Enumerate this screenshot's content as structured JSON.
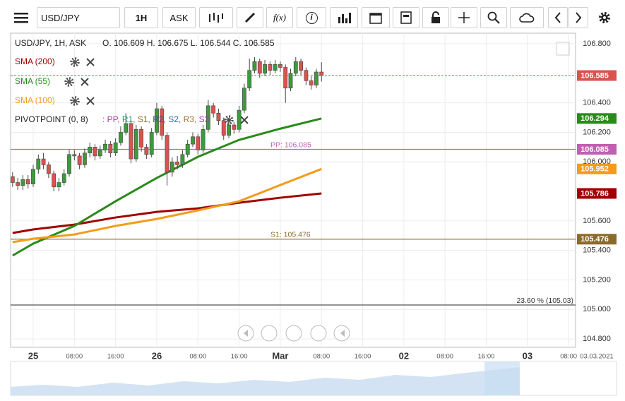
{
  "toolbar": {
    "symbol": "USD/JPY",
    "interval": "1H",
    "price_type": "ASK",
    "function_label": "f(x)",
    "info_label": "i"
  },
  "chart_data": {
    "type": "candlestick",
    "header": "USD/JPY, 1H, ASK",
    "ohlc_text": "O. 106.609 H. 106.675 L. 106.544 C. 106.585",
    "up_color": "#3c9a3c",
    "down_color": "#d9534f",
    "x": [
      -4,
      -3,
      -2,
      -1,
      0,
      1,
      2,
      3,
      4,
      5,
      6,
      7,
      8,
      9,
      10,
      11,
      12,
      13,
      14,
      15,
      16,
      17,
      18,
      19,
      20,
      21,
      22,
      23,
      24,
      25,
      26,
      27,
      28,
      29,
      30,
      31,
      32,
      33,
      34,
      35,
      36,
      37,
      38,
      39,
      40,
      41,
      42,
      43,
      44,
      45,
      46,
      47,
      48,
      49,
      50,
      51,
      52,
      53,
      54,
      55,
      56
    ],
    "open": [
      105.9,
      105.86,
      105.84,
      105.88,
      105.85,
      105.95,
      106.02,
      105.98,
      105.92,
      105.83,
      105.86,
      105.92,
      106.05,
      106.04,
      105.98,
      106.06,
      106.1,
      106.04,
      106.08,
      106.12,
      106.06,
      106.13,
      106.2,
      106.26,
      106.02,
      106.22,
      106.1,
      106.05,
      106.2,
      106.36,
      106.18,
      105.93,
      106.0,
      105.98,
      106.05,
      106.12,
      106.17,
      106.08,
      106.22,
      106.38,
      106.33,
      106.28,
      106.18,
      106.25,
      106.22,
      106.35,
      106.5,
      106.62,
      106.68,
      106.6,
      106.66,
      106.62,
      106.66,
      106.64,
      106.5,
      106.6,
      106.68,
      106.62,
      106.55,
      106.52,
      106.609
    ],
    "high": [
      105.93,
      105.89,
      105.91,
      105.91,
      105.98,
      106.05,
      106.06,
      106.0,
      105.94,
      105.89,
      105.95,
      106.08,
      106.08,
      106.06,
      106.09,
      106.13,
      106.12,
      106.11,
      106.15,
      106.14,
      106.16,
      106.24,
      106.33,
      106.28,
      106.25,
      106.24,
      106.12,
      106.23,
      106.4,
      106.38,
      106.2,
      106.03,
      106.04,
      106.08,
      106.15,
      106.2,
      106.19,
      106.25,
      106.42,
      106.4,
      106.36,
      106.3,
      106.28,
      106.27,
      106.38,
      106.53,
      106.7,
      106.71,
      106.7,
      106.69,
      106.68,
      106.69,
      106.68,
      106.66,
      106.63,
      106.71,
      106.7,
      106.64,
      106.58,
      106.63,
      106.675
    ],
    "low": [
      105.83,
      105.81,
      105.81,
      105.82,
      105.83,
      105.92,
      105.95,
      105.89,
      105.8,
      105.8,
      105.84,
      105.9,
      106.01,
      105.95,
      105.96,
      106.03,
      106.01,
      106.02,
      106.06,
      106.03,
      106.04,
      106.11,
      106.18,
      105.99,
      106.0,
      106.07,
      106.02,
      106.03,
      106.18,
      106.15,
      105.84,
      105.9,
      105.95,
      105.96,
      106.03,
      106.1,
      106.05,
      106.06,
      106.2,
      106.3,
      106.25,
      106.15,
      106.16,
      106.19,
      106.2,
      106.33,
      106.48,
      106.6,
      106.57,
      106.58,
      106.59,
      106.6,
      106.61,
      106.4,
      106.48,
      106.58,
      106.59,
      106.52,
      106.49,
      106.5,
      106.544
    ],
    "close": [
      105.86,
      105.84,
      105.88,
      105.85,
      105.95,
      106.02,
      105.98,
      105.92,
      105.83,
      105.86,
      105.92,
      106.05,
      106.04,
      105.98,
      106.06,
      106.1,
      106.04,
      106.08,
      106.12,
      106.06,
      106.13,
      106.2,
      106.26,
      106.02,
      106.22,
      106.1,
      106.05,
      106.2,
      106.36,
      106.18,
      105.93,
      106.0,
      105.98,
      106.05,
      106.12,
      106.17,
      106.08,
      106.22,
      106.38,
      106.33,
      106.28,
      106.18,
      106.25,
      106.22,
      106.35,
      106.5,
      106.62,
      106.68,
      106.6,
      106.66,
      106.62,
      106.66,
      106.64,
      106.5,
      106.6,
      106.68,
      106.62,
      106.55,
      106.52,
      106.609,
      106.585
    ],
    "series": [
      {
        "name": "SMA (200)",
        "color": "#a00000",
        "x": [
          -4,
          0,
          8,
          16,
          24,
          32,
          40,
          48,
          56
        ],
        "values": [
          105.518,
          105.542,
          105.575,
          105.623,
          105.661,
          105.685,
          105.723,
          105.757,
          105.786
        ]
      },
      {
        "name": "SMA (55)",
        "color": "#2a8a1a",
        "x": [
          -4,
          0,
          8,
          16,
          24,
          32,
          40,
          48,
          56
        ],
        "values": [
          105.365,
          105.446,
          105.566,
          105.733,
          105.891,
          106.034,
          106.149,
          106.225,
          106.294
        ]
      },
      {
        "name": "SMA (100)",
        "color": "#f39c1a",
        "x": [
          -4,
          0,
          8,
          16,
          24,
          32,
          40,
          48,
          56
        ],
        "values": [
          105.456,
          105.479,
          105.508,
          105.566,
          105.613,
          105.671,
          105.733,
          105.843,
          105.952
        ]
      }
    ],
    "pivot_name": "PIVOTPOINT (0, 8)",
    "pivot_legend": [
      ": PP,",
      "R1,",
      "S1,",
      "R2,",
      "S2,",
      "R3,",
      "S3"
    ],
    "pivot_legend_colors": [
      "#b0409a",
      "#2a9a6a",
      "#8b6b2b",
      "#3050a0",
      "#3a6a9a",
      "#9a7030",
      "#9a40a0"
    ],
    "lines": [
      {
        "label": "PP: 106.085",
        "value": 106.085,
        "color": "#c060b0",
        "tag": true
      },
      {
        "label": "S1: 105.476",
        "value": 105.476,
        "color": "#8b6b2b",
        "tag": true
      },
      {
        "label": "23.60 % (105.03)",
        "value": 105.03,
        "color": "#555555",
        "tag": false
      }
    ],
    "last_price_color": "#d9534f",
    "ylim": [
      104.743,
      106.872
    ],
    "yticks": [
      {
        "value": 106.8,
        "label": "106.800"
      },
      {
        "value": 106.4,
        "label": "106.400"
      },
      {
        "value": 106.2,
        "label": "106.200"
      },
      {
        "value": 106.0,
        "label": "106.000"
      },
      {
        "value": 105.6,
        "label": "105.600"
      },
      {
        "value": 105.4,
        "label": "105.400"
      },
      {
        "value": 105.2,
        "label": "105.200"
      },
      {
        "value": 105.0,
        "label": "105.000"
      },
      {
        "value": 104.8,
        "label": "104.800"
      }
    ],
    "xlim": [
      -4.39,
      105.35
    ],
    "xticks": [
      {
        "value": 0,
        "label": "25"
      },
      {
        "value": 8,
        "label": "08:00"
      },
      {
        "value": 16,
        "label": "16:00"
      },
      {
        "value": 24,
        "label": "26"
      },
      {
        "value": 32,
        "label": "08:00"
      },
      {
        "value": 40,
        "label": "16:00"
      },
      {
        "value": 48,
        "label": "Mar"
      },
      {
        "value": 56,
        "label": "08:00"
      },
      {
        "value": 64,
        "label": "16:00"
      },
      {
        "value": 72,
        "label": "02"
      },
      {
        "value": 80,
        "label": "08:00"
      },
      {
        "value": 88,
        "label": "16:00"
      },
      {
        "value": 96,
        "label": "03"
      },
      {
        "value": 104,
        "label": "08:00"
      }
    ],
    "date_label": "03.03.2021",
    "grid": true
  }
}
